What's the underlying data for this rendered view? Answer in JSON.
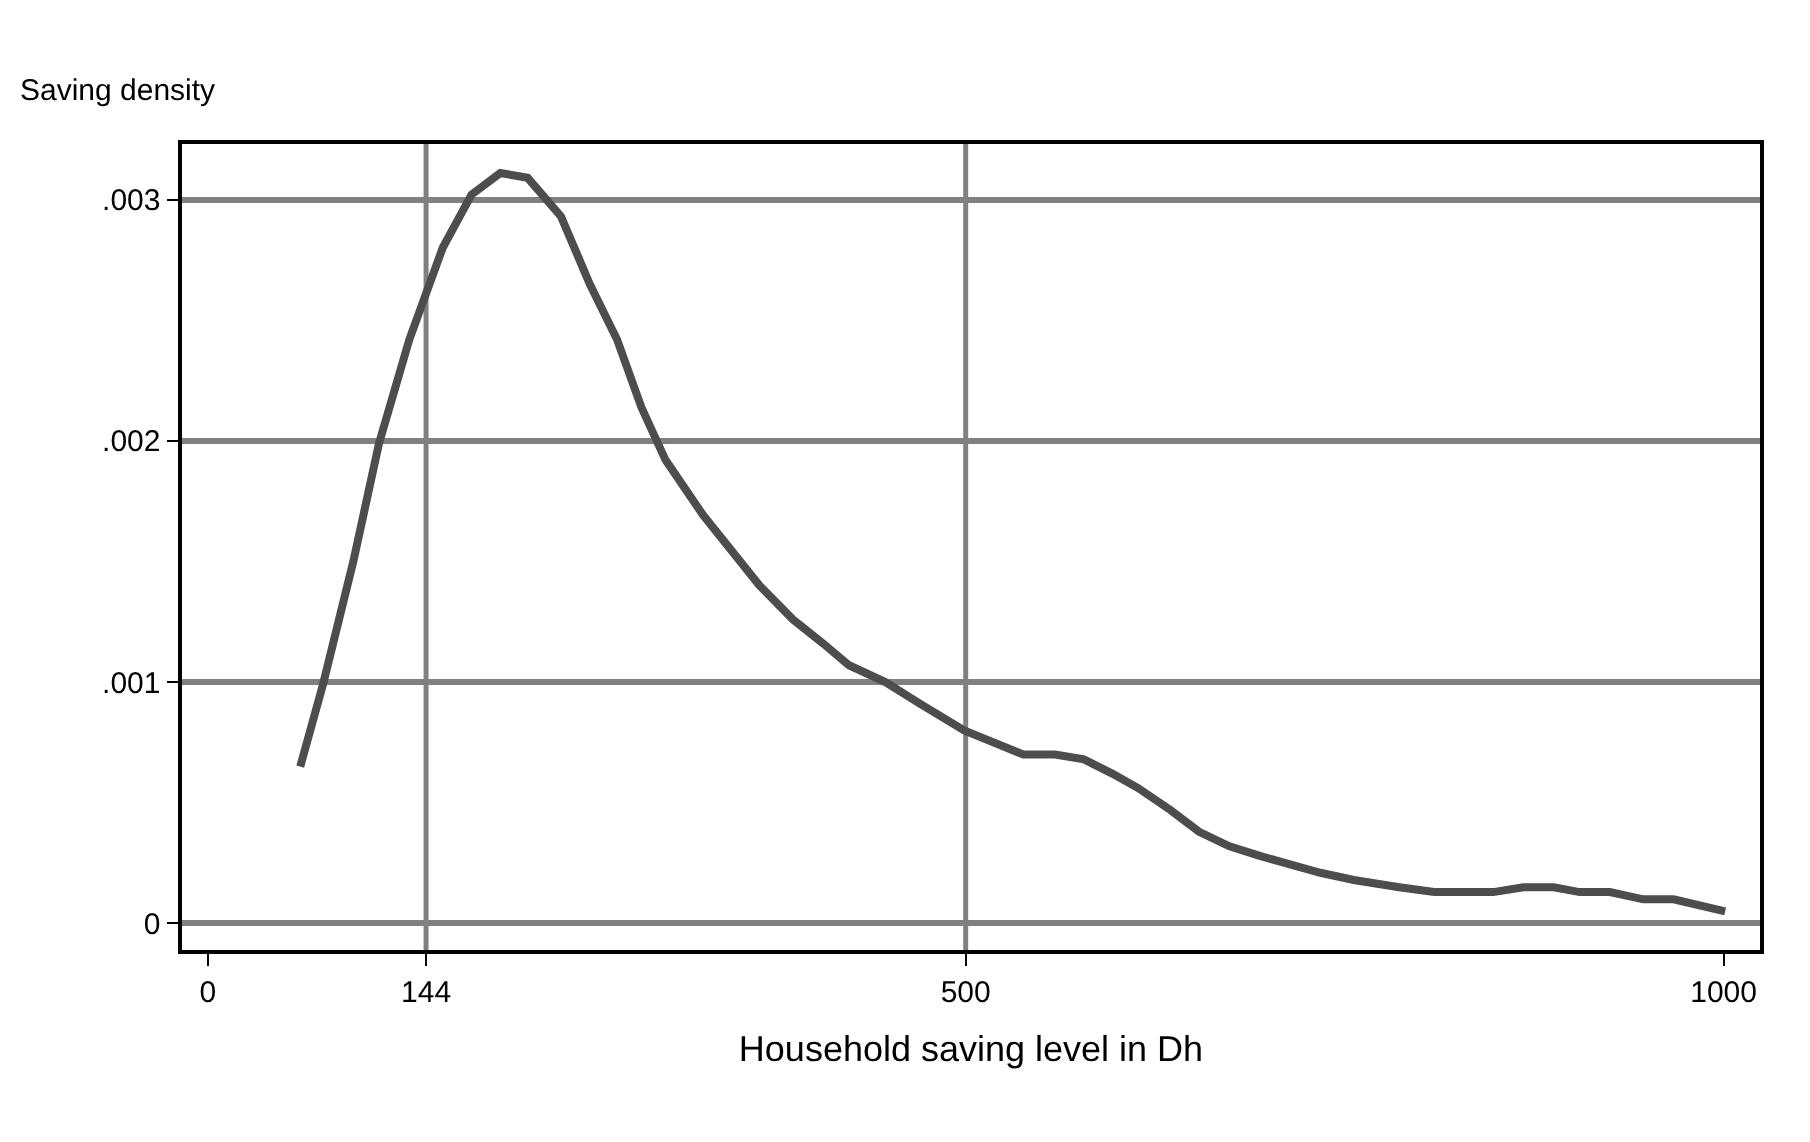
{
  "chart_data": {
    "type": "line",
    "xlabel": "Household saving level in Dh",
    "ylabel": "Saving density",
    "x": [
      61,
      76,
      96,
      113,
      133,
      155,
      174,
      193,
      211,
      233,
      252,
      270,
      286,
      302,
      327,
      364,
      386,
      406,
      423,
      447,
      470,
      499,
      538,
      559,
      578,
      597,
      614,
      635,
      654,
      674,
      694,
      711,
      734,
      756,
      786,
      809,
      848,
      868,
      888,
      905,
      925,
      947,
      967,
      1001
    ],
    "series": [
      {
        "color": "#4d4d4d",
        "values": [
          0.00065,
          0.00099,
          0.0015,
          0.00199,
          0.00242,
          0.0028,
          0.00302,
          0.00311,
          0.00309,
          0.00293,
          0.00265,
          0.00242,
          0.00214,
          0.00192,
          0.00169,
          0.0014,
          0.00126,
          0.00116,
          0.00107,
          0.001,
          0.00091,
          0.0008,
          0.0007,
          0.0007,
          0.00068,
          0.00062,
          0.00056,
          0.00047,
          0.00038,
          0.00032,
          0.00028,
          0.00025,
          0.00021,
          0.00018,
          0.00015,
          0.00013,
          0.00013,
          0.00015,
          0.00015,
          0.00013,
          0.00013,
          0.0001,
          0.0001,
          5e-05
        ]
      }
    ],
    "xlim": [
      -17,
      1024
    ],
    "xticks": [
      0,
      144,
      500,
      1000
    ],
    "ylim": [
      -0.00011,
      0.00323
    ],
    "yticks": [
      0,
      {
        "value": 0.001,
        "label": ".001"
      },
      {
        "value": 0.002,
        "label": ".002"
      },
      {
        "value": 0.003,
        "label": ".003"
      }
    ],
    "ref_lines": [
      {
        "axis": "x",
        "value": 144,
        "color": "#808080"
      },
      {
        "axis": "x",
        "value": 500,
        "color": "#808080"
      }
    ],
    "grid": "y",
    "marker": "none",
    "line_style": "solid"
  }
}
